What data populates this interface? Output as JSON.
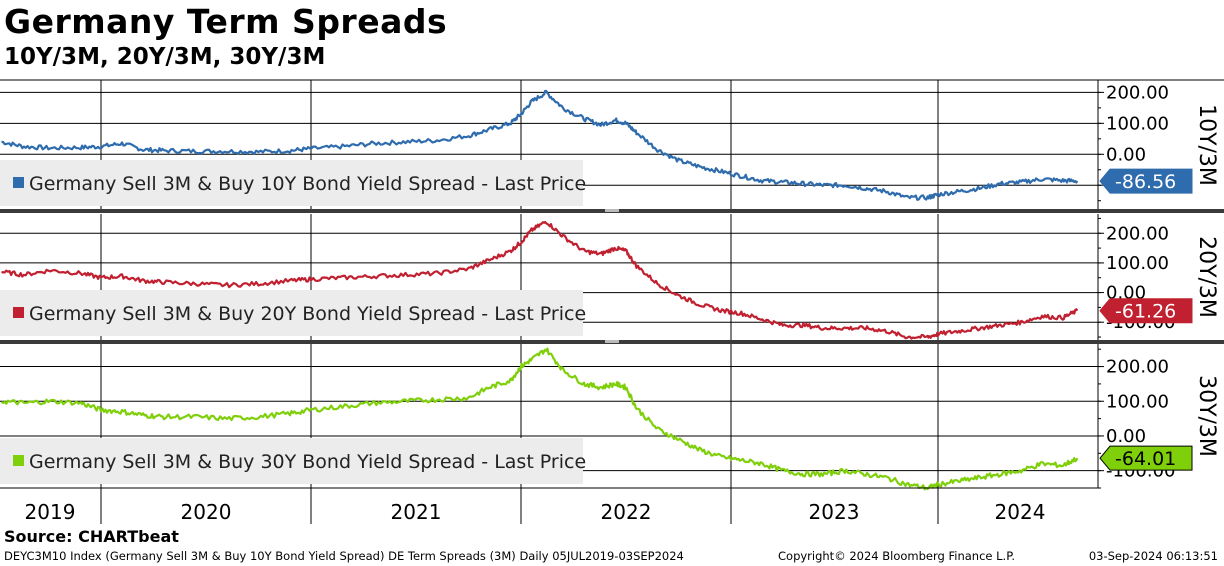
{
  "header": {
    "title": "Germany Term Spreads",
    "subtitle": "10Y/3M, 20Y/3M, 30Y/3M"
  },
  "footer": {
    "source": "Source: CHARTbeat",
    "ticker_info": "DEYC3M10 Index (Germany Sell 3M & Buy 10Y Bond Yield Spread) DE Term Spreads (3M)  Daily 05JUL2019-03SEP2024",
    "copyright": "Copyright© 2024 Bloomberg Finance L.P.",
    "timestamp": "03-Sep-2024 06:13:51"
  },
  "colors": {
    "series_10y": "#2f6cad",
    "series_20y": "#c0202f",
    "series_30y": "#7fcf0b",
    "grid": "#000000",
    "legend_bg": "#ececec"
  },
  "chart_data": [
    {
      "type": "line",
      "panel_label": "10Y/3M",
      "legend": "Germany Sell 3M & Buy 10Y Bond Yield Spread - Last Price",
      "last_value_label": "-86.56",
      "last_value": -86.56,
      "ylim": [
        -180,
        240
      ],
      "y_ticks": [
        200,
        100,
        0,
        -100
      ],
      "y_tick_labels": [
        "200.00",
        "100.00",
        "0.00",
        ""
      ],
      "x": [
        2019.51,
        2019.62,
        2019.75,
        2019.9,
        2020.0,
        2020.1,
        2020.2,
        2020.3,
        2020.45,
        2020.6,
        2020.75,
        2020.9,
        2021.0,
        2021.15,
        2021.3,
        2021.45,
        2021.6,
        2021.75,
        2021.85,
        2021.95,
        2022.0,
        2022.05,
        2022.12,
        2022.2,
        2022.3,
        2022.38,
        2022.45,
        2022.5,
        2022.55,
        2022.65,
        2022.75,
        2022.85,
        2022.95,
        2023.05,
        2023.15,
        2023.25,
        2023.35,
        2023.45,
        2023.55,
        2023.65,
        2023.75,
        2023.85,
        2023.95,
        2024.0,
        2024.1,
        2024.2,
        2024.3,
        2024.4,
        2024.5,
        2024.6,
        2024.67
      ],
      "y": [
        40,
        25,
        20,
        22,
        25,
        35,
        15,
        12,
        10,
        10,
        8,
        12,
        18,
        25,
        35,
        40,
        45,
        60,
        80,
        100,
        130,
        170,
        200,
        150,
        115,
        95,
        110,
        100,
        70,
        15,
        -20,
        -40,
        -55,
        -70,
        -85,
        -90,
        -95,
        -100,
        -100,
        -110,
        -120,
        -140,
        -140,
        -130,
        -120,
        -110,
        -95,
        -90,
        -80,
        -85,
        -86.56
      ]
    },
    {
      "type": "line",
      "panel_label": "20Y/3M",
      "legend": "Germany Sell 3M & Buy 20Y Bond Yield Spread - Last Price",
      "last_value_label": "-61.26",
      "last_value": -61.26,
      "ylim": [
        -160,
        265
      ],
      "y_ticks": [
        200,
        100,
        0,
        -100
      ],
      "y_tick_labels": [
        "200.00",
        "100.00",
        "0.00",
        "-100.00"
      ],
      "x": [
        2019.51,
        2019.62,
        2019.75,
        2019.9,
        2020.0,
        2020.1,
        2020.2,
        2020.3,
        2020.45,
        2020.6,
        2020.75,
        2020.9,
        2021.0,
        2021.15,
        2021.3,
        2021.45,
        2021.6,
        2021.75,
        2021.85,
        2021.95,
        2022.0,
        2022.05,
        2022.12,
        2022.2,
        2022.3,
        2022.38,
        2022.45,
        2022.5,
        2022.55,
        2022.65,
        2022.75,
        2022.85,
        2022.95,
        2023.05,
        2023.15,
        2023.25,
        2023.35,
        2023.45,
        2023.55,
        2023.65,
        2023.75,
        2023.85,
        2023.95,
        2024.0,
        2024.1,
        2024.2,
        2024.3,
        2024.4,
        2024.5,
        2024.6,
        2024.67
      ],
      "y": [
        70,
        60,
        75,
        65,
        50,
        55,
        40,
        35,
        30,
        25,
        30,
        40,
        45,
        50,
        55,
        60,
        65,
        80,
        110,
        140,
        170,
        210,
        240,
        190,
        140,
        130,
        150,
        140,
        90,
        30,
        -10,
        -40,
        -60,
        -70,
        -90,
        -110,
        -110,
        -120,
        -120,
        -120,
        -130,
        -150,
        -150,
        -140,
        -130,
        -120,
        -110,
        -100,
        -80,
        -85,
        -61.26
      ]
    },
    {
      "type": "line",
      "panel_label": "30Y/3M",
      "legend": "Germany Sell 3M & Buy 30Y Bond Yield Spread - Last Price",
      "last_value_label": "-64.01",
      "last_value": -64.01,
      "ylim": [
        -150,
        265
      ],
      "y_ticks": [
        200,
        100,
        0,
        -100
      ],
      "y_tick_labels": [
        "200.00",
        "100.00",
        "0.00",
        "-100.00"
      ],
      "x": [
        2019.51,
        2019.62,
        2019.75,
        2019.9,
        2020.0,
        2020.1,
        2020.2,
        2020.3,
        2020.45,
        2020.6,
        2020.75,
        2020.9,
        2021.0,
        2021.15,
        2021.3,
        2021.45,
        2021.6,
        2021.75,
        2021.85,
        2021.95,
        2022.0,
        2022.05,
        2022.12,
        2022.2,
        2022.3,
        2022.38,
        2022.45,
        2022.5,
        2022.55,
        2022.65,
        2022.75,
        2022.85,
        2022.95,
        2023.05,
        2023.15,
        2023.25,
        2023.35,
        2023.45,
        2023.55,
        2023.65,
        2023.75,
        2023.85,
        2023.95,
        2024.0,
        2024.1,
        2024.2,
        2024.3,
        2024.4,
        2024.5,
        2024.6,
        2024.67
      ],
      "y": [
        100,
        95,
        100,
        95,
        75,
        70,
        60,
        55,
        55,
        50,
        55,
        65,
        75,
        85,
        95,
        100,
        105,
        110,
        140,
        160,
        200,
        220,
        250,
        190,
        150,
        140,
        150,
        140,
        80,
        20,
        -10,
        -40,
        -60,
        -70,
        -80,
        -100,
        -110,
        -110,
        -100,
        -110,
        -120,
        -140,
        -150,
        -140,
        -130,
        -120,
        -110,
        -100,
        -80,
        -85,
        -64.01
      ]
    }
  ],
  "x_axis": {
    "year_labels": [
      "2019",
      "2020",
      "2021",
      "2022",
      "2023",
      "2024"
    ],
    "year_boundaries": [
      2020,
      2021,
      2022,
      2023,
      2024
    ],
    "xlim": [
      2019.0,
      2024.8
    ]
  }
}
